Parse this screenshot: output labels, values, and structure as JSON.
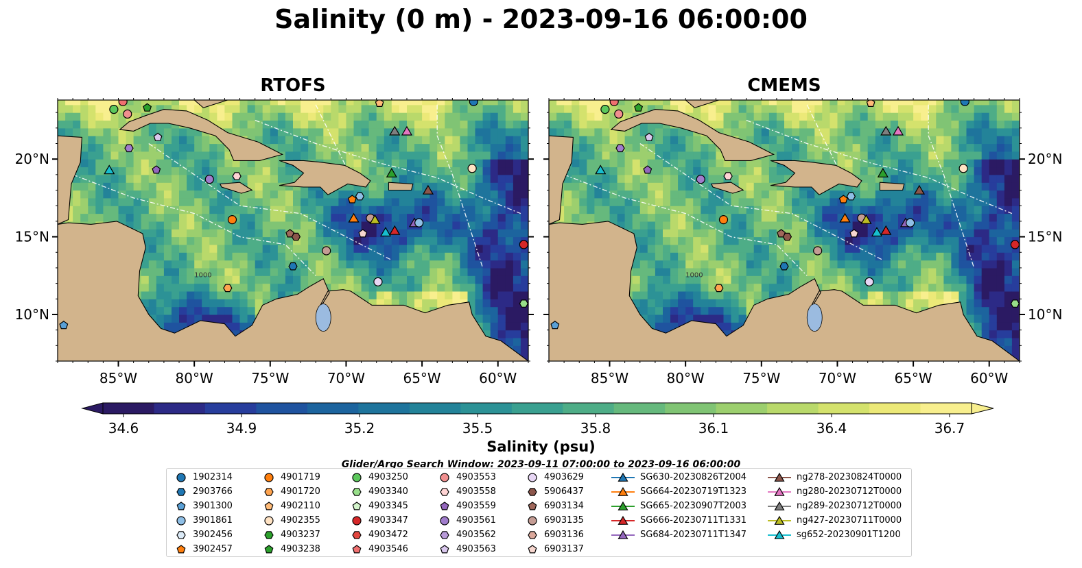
{
  "title": "Salinity (0 m) - 2023-09-16 06:00:00",
  "panels": [
    {
      "title": "RTOFS"
    },
    {
      "title": "CMEMS"
    }
  ],
  "map": {
    "lon_range": [
      -89,
      -58
    ],
    "lat_range": [
      7,
      23.8
    ],
    "lon_ticks": [
      {
        "value": -85,
        "label": "85°W"
      },
      {
        "value": -80,
        "label": "80°W"
      },
      {
        "value": -75,
        "label": "75°W"
      },
      {
        "value": -70,
        "label": "70°W"
      },
      {
        "value": -65,
        "label": "65°W"
      },
      {
        "value": -60,
        "label": "60°W"
      }
    ],
    "lat_ticks": [
      {
        "value": 10,
        "label": "10°N"
      },
      {
        "value": 15,
        "label": "15°N"
      },
      {
        "value": 20,
        "label": "20°N"
      }
    ],
    "land_color": "#d2b48c",
    "lake_color": "#9bbbe0",
    "contour_label": "1000"
  },
  "colorbar": {
    "label": "Salinity (psu)",
    "min": 34.6,
    "max": 36.7,
    "ticks": [
      "34.6",
      "34.9",
      "35.2",
      "35.5",
      "35.8",
      "36.1",
      "36.4",
      "36.7"
    ],
    "colors": [
      "#2b1a63",
      "#2c2a86",
      "#273d9c",
      "#1f539f",
      "#1c649e",
      "#1e749c",
      "#238399",
      "#2c9296",
      "#3aa090",
      "#4ead87",
      "#66b97d",
      "#80c474",
      "#9ccf6e",
      "#b9d96b",
      "#d4e26d",
      "#ece978",
      "#f8ef8e"
    ]
  },
  "search_window": "Glider/Argo Search Window: 2023-09-11 07:00:00 to 2023-09-16 06:00:00",
  "legend": {
    "columns": [
      [
        {
          "label": "1902314",
          "shape": "circle",
          "color": "#1f77b4"
        },
        {
          "label": "2903766",
          "shape": "hexagon",
          "color": "#1f77b4"
        },
        {
          "label": "3901300",
          "shape": "pentagon",
          "color": "#5aa0d6"
        },
        {
          "label": "3901861",
          "shape": "circle",
          "color": "#8fbfe6"
        },
        {
          "label": "3902456",
          "shape": "hexagon",
          "color": "#dbeaf7"
        },
        {
          "label": "3902457",
          "shape": "pentagon",
          "color": "#ff7f0e"
        }
      ],
      [
        {
          "label": "4901719",
          "shape": "circle",
          "color": "#ff7f0e"
        },
        {
          "label": "4901720",
          "shape": "hexagon",
          "color": "#ffa44f"
        },
        {
          "label": "4902110",
          "shape": "pentagon",
          "color": "#ffbb78"
        },
        {
          "label": "4902355",
          "shape": "circle",
          "color": "#ffe3c4"
        },
        {
          "label": "4903237",
          "shape": "hexagon",
          "color": "#2ca02c"
        },
        {
          "label": "4903238",
          "shape": "pentagon",
          "color": "#2ca02c"
        }
      ],
      [
        {
          "label": "4903250",
          "shape": "circle",
          "color": "#5cc85c"
        },
        {
          "label": "4903340",
          "shape": "hexagon",
          "color": "#98df8a"
        },
        {
          "label": "4903345",
          "shape": "pentagon",
          "color": "#d4f5cc"
        },
        {
          "label": "4903347",
          "shape": "circle",
          "color": "#d62728"
        },
        {
          "label": "4903472",
          "shape": "hexagon",
          "color": "#e3463f"
        },
        {
          "label": "4903546",
          "shape": "pentagon",
          "color": "#f07070"
        }
      ],
      [
        {
          "label": "4903553",
          "shape": "circle",
          "color": "#f08f8f"
        },
        {
          "label": "4903558",
          "shape": "hexagon",
          "color": "#ffd4d4"
        },
        {
          "label": "4903559",
          "shape": "pentagon",
          "color": "#9467bd"
        },
        {
          "label": "4903561",
          "shape": "circle",
          "color": "#a07ccc"
        },
        {
          "label": "4903562",
          "shape": "hexagon",
          "color": "#b89ad8"
        },
        {
          "label": "4903563",
          "shape": "pentagon",
          "color": "#dac8ee"
        }
      ],
      [
        {
          "label": "4903629",
          "shape": "circle",
          "color": "#e7d6f4"
        },
        {
          "label": "5906437",
          "shape": "hexagon",
          "color": "#8c564b"
        },
        {
          "label": "6903134",
          "shape": "pentagon",
          "color": "#a0685b"
        },
        {
          "label": "6903135",
          "shape": "circle",
          "color": "#c49c94"
        },
        {
          "label": "6903136",
          "shape": "hexagon",
          "color": "#dba89b"
        },
        {
          "label": "6903137",
          "shape": "pentagon",
          "color": "#f7d7cf"
        }
      ],
      [
        {
          "label": "SG630-20230826T2004",
          "shape": "triangle",
          "color": "#1f77b4"
        },
        {
          "label": "SG664-20230719T1323",
          "shape": "triangle",
          "color": "#ff7f0e"
        },
        {
          "label": "SG665-20230907T2003",
          "shape": "triangle",
          "color": "#2ca02c"
        },
        {
          "label": "SG666-20230711T1331",
          "shape": "triangle",
          "color": "#d62728"
        },
        {
          "label": "SG684-20230711T1347",
          "shape": "triangle",
          "color": "#9467bd"
        }
      ],
      [
        {
          "label": "ng278-20230824T0000",
          "shape": "triangle",
          "color": "#8c564b"
        },
        {
          "label": "ng280-20230712T0000",
          "shape": "triangle",
          "color": "#e377c2"
        },
        {
          "label": "ng289-20230712T0000",
          "shape": "triangle",
          "color": "#7f7f7f"
        },
        {
          "label": "ng427-20230711T0000",
          "shape": "triangle",
          "color": "#bcbd22"
        },
        {
          "label": "sg652-20230901T1200",
          "shape": "triangle",
          "color": "#17becf"
        }
      ]
    ]
  },
  "markers": [
    {
      "lon": -84.7,
      "lat": 23.7,
      "shape": "circle",
      "color": "#f07070"
    },
    {
      "lon": -84.4,
      "lat": 22.9,
      "shape": "circle",
      "color": "#f08f8f"
    },
    {
      "lon": -85.3,
      "lat": 23.2,
      "shape": "circle",
      "color": "#5cc85c"
    },
    {
      "lon": -83.1,
      "lat": 23.3,
      "shape": "pentagon",
      "color": "#2ca02c"
    },
    {
      "lon": -66.8,
      "lat": 21.8,
      "shape": "triangle",
      "color": "#7f7f7f"
    },
    {
      "lon": -66.0,
      "lat": 21.8,
      "shape": "triangle",
      "color": "#e377c2"
    },
    {
      "lon": -67.8,
      "lat": 23.6,
      "shape": "pentagon",
      "color": "#ffbb78"
    },
    {
      "lon": -61.6,
      "lat": 23.7,
      "shape": "circle",
      "color": "#1f77b4"
    },
    {
      "lon": -84.3,
      "lat": 20.7,
      "shape": "hexagon",
      "color": "#a07ccc"
    },
    {
      "lon": -82.4,
      "lat": 21.4,
      "shape": "pentagon",
      "color": "#dac8ee"
    },
    {
      "lon": -85.6,
      "lat": 19.3,
      "shape": "triangle",
      "color": "#17becf"
    },
    {
      "lon": -82.5,
      "lat": 19.3,
      "shape": "pentagon",
      "color": "#9467bd"
    },
    {
      "lon": -79.0,
      "lat": 18.7,
      "shape": "circle",
      "color": "#a07ccc"
    },
    {
      "lon": -77.2,
      "lat": 18.9,
      "shape": "hexagon",
      "color": "#ffd4d4"
    },
    {
      "lon": -61.7,
      "lat": 19.4,
      "shape": "circle",
      "color": "#ffe3c4"
    },
    {
      "lon": -67.0,
      "lat": 19.1,
      "shape": "triangle",
      "color": "#2ca02c"
    },
    {
      "lon": -69.1,
      "lat": 17.6,
      "shape": "hexagon",
      "color": "#8fbfe6"
    },
    {
      "lon": -69.6,
      "lat": 17.4,
      "shape": "pentagon",
      "color": "#ff7f0e"
    },
    {
      "lon": -64.6,
      "lat": 18.0,
      "shape": "triangle",
      "color": "#8c564b"
    },
    {
      "lon": -77.5,
      "lat": 16.1,
      "shape": "circle",
      "color": "#ff7f0e"
    },
    {
      "lon": -69.5,
      "lat": 16.2,
      "shape": "triangle",
      "color": "#ff7f0e"
    },
    {
      "lon": -68.4,
      "lat": 16.2,
      "shape": "circle",
      "color": "#c49c94"
    },
    {
      "lon": -68.1,
      "lat": 16.1,
      "shape": "triangle",
      "color": "#bcbd22"
    },
    {
      "lon": -67.4,
      "lat": 15.3,
      "shape": "triangle",
      "color": "#17becf"
    },
    {
      "lon": -66.8,
      "lat": 15.4,
      "shape": "triangle",
      "color": "#d62728"
    },
    {
      "lon": -65.5,
      "lat": 15.9,
      "shape": "triangle",
      "color": "#9467bd"
    },
    {
      "lon": -65.2,
      "lat": 15.9,
      "shape": "circle",
      "color": "#8fbfe6"
    },
    {
      "lon": -73.7,
      "lat": 15.2,
      "shape": "pentagon",
      "color": "#a0685b"
    },
    {
      "lon": -73.3,
      "lat": 15.0,
      "shape": "hexagon",
      "color": "#8c564b"
    },
    {
      "lon": -68.9,
      "lat": 15.2,
      "shape": "pentagon",
      "color": "#f7d7cf"
    },
    {
      "lon": -71.3,
      "lat": 14.1,
      "shape": "circle",
      "color": "#c49c94"
    },
    {
      "lon": -58.3,
      "lat": 14.5,
      "shape": "circle",
      "color": "#d62728"
    },
    {
      "lon": -73.5,
      "lat": 13.1,
      "shape": "hexagon",
      "color": "#1f77b4"
    },
    {
      "lon": -67.9,
      "lat": 12.1,
      "shape": "circle",
      "color": "#e7d6f4"
    },
    {
      "lon": -77.8,
      "lat": 11.7,
      "shape": "hexagon",
      "color": "#ffa44f"
    },
    {
      "lon": -58.3,
      "lat": 10.7,
      "shape": "hexagon",
      "color": "#98df8a"
    },
    {
      "lon": -88.6,
      "lat": 9.3,
      "shape": "pentagon",
      "color": "#5aa0d6"
    }
  ]
}
